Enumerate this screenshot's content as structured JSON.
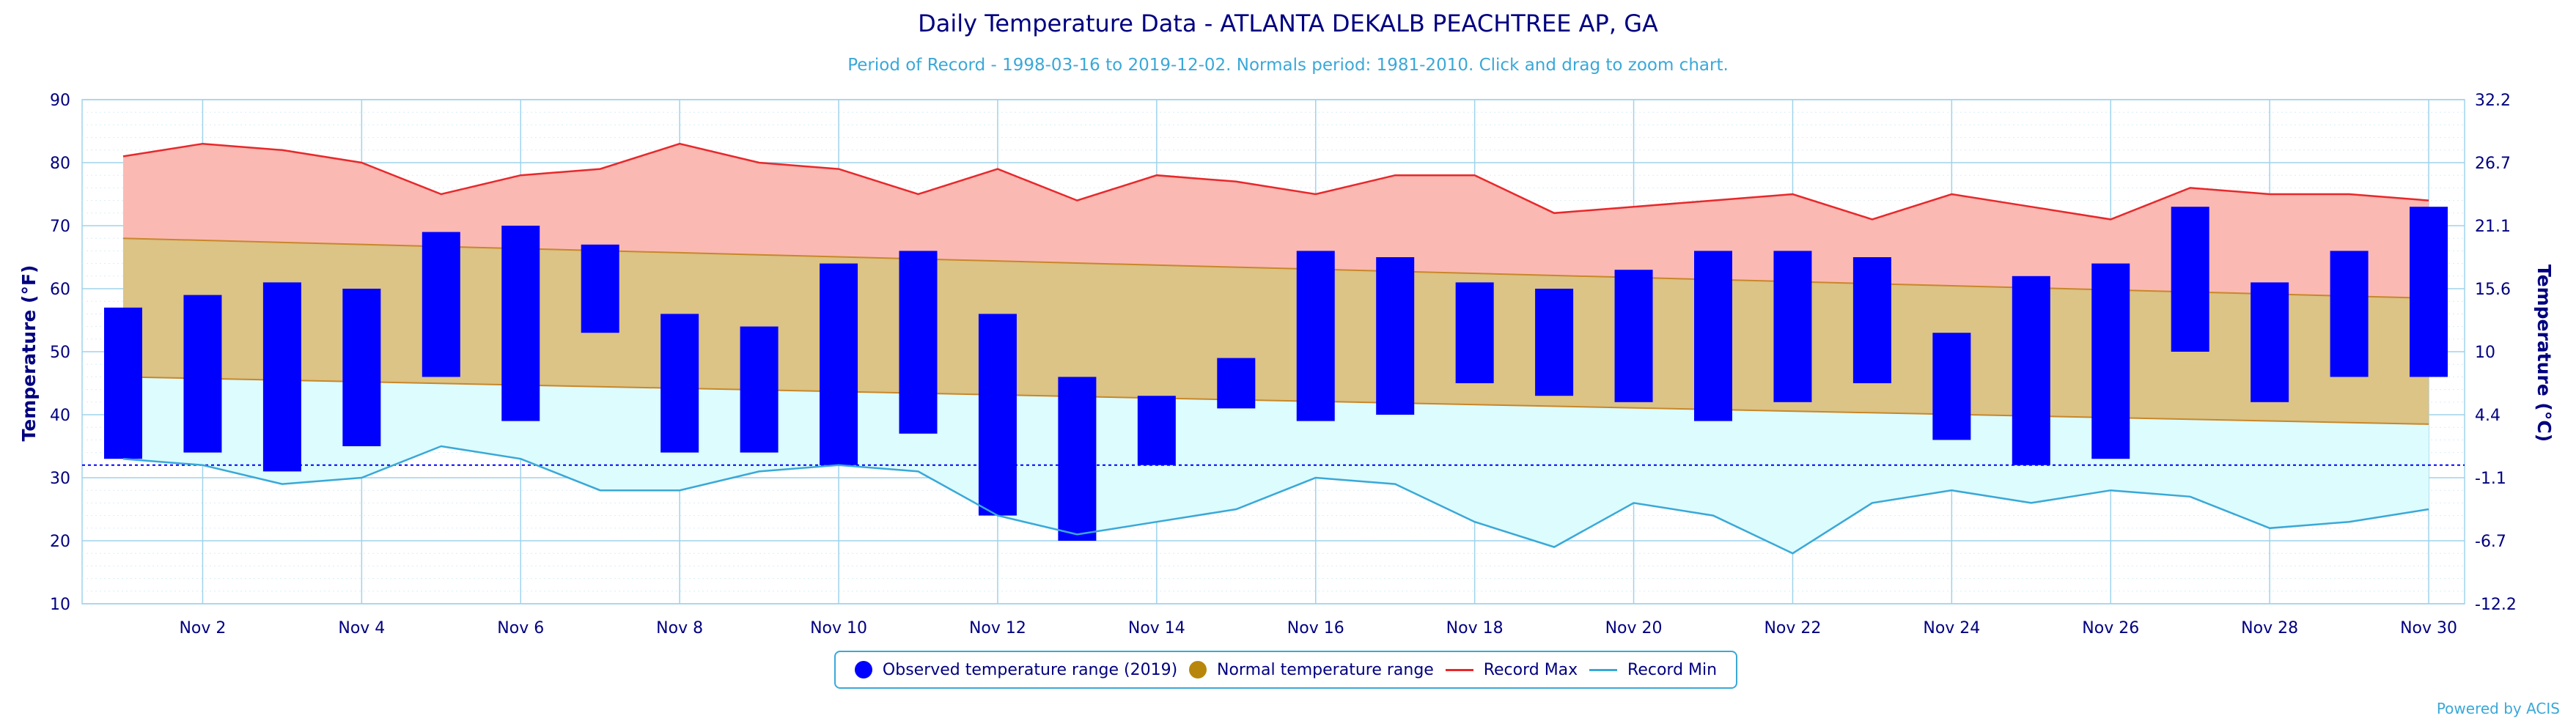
{
  "chart_data": {
    "type": "bar",
    "title": "Daily Temperature Data - ATLANTA DEKALB PEACHTREE AP, GA",
    "subtitle": "Period of Record - 1998-03-16 to 2019-12-02. Normals period: 1981-2010. Click and drag to zoom chart.",
    "ylabel": "Temperature (°F)",
    "ylabel_right": "Temperature (°C)",
    "ylim": [
      10,
      90
    ],
    "y_ticks": [
      10,
      20,
      30,
      40,
      50,
      60,
      70,
      80,
      90
    ],
    "y_ticks_right": [
      "-12.2",
      "-6.7",
      "-1.1",
      "4.4",
      "10",
      "15.6",
      "21.1",
      "26.7",
      "32.2"
    ],
    "days": [
      1,
      2,
      3,
      4,
      5,
      6,
      7,
      8,
      9,
      10,
      11,
      12,
      13,
      14,
      15,
      16,
      17,
      18,
      19,
      20,
      21,
      22,
      23,
      24,
      25,
      26,
      27,
      28,
      29,
      30
    ],
    "x_tick_labels": [
      "Nov 2",
      "Nov 4",
      "Nov 6",
      "Nov 8",
      "Nov 10",
      "Nov 12",
      "Nov 14",
      "Nov 16",
      "Nov 18",
      "Nov 20",
      "Nov 22",
      "Nov 24",
      "Nov 26",
      "Nov 28",
      "Nov 30"
    ],
    "x_tick_days": [
      2,
      4,
      6,
      8,
      10,
      12,
      14,
      16,
      18,
      20,
      22,
      24,
      26,
      28,
      30
    ],
    "freezing_line": 32,
    "grid": true,
    "legend_position": "bottom-center",
    "series": [
      {
        "name": "Observed temperature range (2019)",
        "type": "floating-bar",
        "color": "#0000ff",
        "low": [
          33,
          34,
          31,
          35,
          46,
          39,
          53,
          34,
          34,
          32,
          37,
          24,
          20,
          32,
          41,
          39,
          40,
          45,
          43,
          42,
          39,
          42,
          45,
          36,
          32,
          33,
          50,
          42,
          46,
          46
        ],
        "high": [
          57,
          59,
          61,
          60,
          69,
          70,
          67,
          56,
          54,
          64,
          66,
          56,
          46,
          43,
          49,
          66,
          65,
          61,
          60,
          63,
          66,
          66,
          65,
          53,
          62,
          64,
          73,
          61,
          66,
          73
        ]
      },
      {
        "name": "Normal temperature range",
        "type": "band",
        "color": "#b8860b",
        "low_start": 46,
        "low_end": 38.5,
        "high_start": 68,
        "high_end": 58.5
      },
      {
        "name": "Record Max",
        "type": "line",
        "color": "#e8282a",
        "values": [
          81,
          83,
          82,
          80,
          75,
          78,
          79,
          83,
          80,
          79,
          75,
          79,
          74,
          78,
          77,
          75,
          78,
          78,
          72,
          73,
          74,
          75,
          71,
          75,
          73,
          71,
          76,
          75,
          75,
          74
        ]
      },
      {
        "name": "Record Min",
        "type": "line",
        "color": "#3aa8d8",
        "values": [
          33,
          32,
          29,
          30,
          35,
          33,
          28,
          28,
          31,
          32,
          31,
          24,
          21,
          23,
          25,
          30,
          29,
          23,
          19,
          26,
          24,
          18,
          26,
          28,
          26,
          28,
          27,
          22,
          23,
          25
        ]
      }
    ],
    "credit": "Powered by ACIS"
  }
}
